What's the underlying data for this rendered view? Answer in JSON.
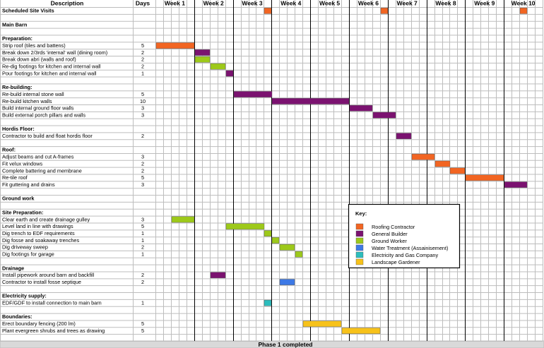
{
  "header": {
    "description": "Description",
    "days": "Days",
    "weeks": [
      "Week 1",
      "Week 2",
      "Week 3",
      "Week 4",
      "Week 5",
      "Week 6",
      "Week 7",
      "Week 8",
      "Week 9",
      "Week 10"
    ]
  },
  "footer": {
    "label": "Phase 1 completed"
  },
  "colors": {
    "roofing": "#f26522",
    "builder": "#7b1270",
    "ground": "#9dc91a",
    "water": "#3d79e6",
    "electric": "#2cbdbd",
    "landscape": "#f7c21a",
    "grid": "#bdbdbd",
    "week_line": "#000000",
    "footer_bg": "#d9d9d9"
  },
  "legend": {
    "title": "Key:",
    "entries": [
      {
        "label": "Roofing Contractor",
        "color": "roofing"
      },
      {
        "label": "General Builder",
        "color": "builder"
      },
      {
        "label": "Ground Worker",
        "color": "ground"
      },
      {
        "label": "Water Treatment (Assainisement)",
        "color": "water"
      },
      {
        "label": "Electricity and Gas Company",
        "color": "electric"
      },
      {
        "label": "Landscape Gardener",
        "color": "landscape"
      }
    ]
  },
  "chart_data": {
    "type": "gantt",
    "unit": "day",
    "days_per_week": 5,
    "total_days": 50,
    "rows": [
      {
        "label": "Scheduled Site Visits",
        "kind": "heading",
        "bars": [
          {
            "start": 14,
            "duration": 1,
            "color": "roofing"
          },
          {
            "start": 29,
            "duration": 1,
            "color": "roofing"
          },
          {
            "start": 47,
            "duration": 1,
            "color": "roofing"
          }
        ]
      },
      {
        "label": "",
        "kind": "blank"
      },
      {
        "label": "Main Barn",
        "kind": "heading"
      },
      {
        "label": "",
        "kind": "blank"
      },
      {
        "label": "Preparation:",
        "kind": "section"
      },
      {
        "label": "Strip roof (tiles and battens)",
        "days": "5",
        "bars": [
          {
            "start": 0,
            "duration": 5,
            "color": "roofing"
          }
        ]
      },
      {
        "label": "Break down 2/3rds 'internal' wall (dining room)",
        "days": "2",
        "bars": [
          {
            "start": 5,
            "duration": 2,
            "color": "builder"
          }
        ]
      },
      {
        "label": "Break down abri (walls and roof)",
        "days": "2",
        "bars": [
          {
            "start": 5,
            "duration": 2,
            "color": "ground"
          }
        ]
      },
      {
        "label": "Re-dig footings for kitchen and internal wall",
        "days": "2",
        "bars": [
          {
            "start": 7,
            "duration": 2,
            "color": "ground"
          }
        ]
      },
      {
        "label": "Pour footings for kitchen and internal wall",
        "days": "1",
        "bars": [
          {
            "start": 9,
            "duration": 1,
            "color": "builder"
          }
        ]
      },
      {
        "label": "",
        "kind": "blank"
      },
      {
        "label": "Re-building:",
        "kind": "section"
      },
      {
        "label": "Re-build internal stone wall",
        "days": "5",
        "bars": [
          {
            "start": 10,
            "duration": 5,
            "color": "builder"
          }
        ]
      },
      {
        "label": "Re-build kitchen walls",
        "days": "10",
        "bars": [
          {
            "start": 15,
            "duration": 10,
            "color": "builder"
          }
        ]
      },
      {
        "label": "Build internal ground floor walls",
        "days": "3",
        "bars": [
          {
            "start": 25,
            "duration": 3,
            "color": "builder"
          }
        ]
      },
      {
        "label": "Build external porch pillars and walls",
        "days": "3",
        "bars": [
          {
            "start": 28,
            "duration": 3,
            "color": "builder"
          }
        ]
      },
      {
        "label": "",
        "kind": "blank"
      },
      {
        "label": "Hordis Floor:",
        "kind": "section"
      },
      {
        "label": "Contractor to build and float hordis floor",
        "days": "2",
        "bars": [
          {
            "start": 31,
            "duration": 2,
            "color": "builder"
          }
        ]
      },
      {
        "label": "",
        "kind": "blank"
      },
      {
        "label": "Roof:",
        "kind": "section"
      },
      {
        "label": "Adjust beams and cut A-frames",
        "days": "3",
        "bars": [
          {
            "start": 33,
            "duration": 3,
            "color": "roofing"
          }
        ]
      },
      {
        "label": "Fit velux windows",
        "days": "2",
        "bars": [
          {
            "start": 36,
            "duration": 2,
            "color": "roofing"
          }
        ]
      },
      {
        "label": "Complete battering and membrane",
        "days": "2",
        "bars": [
          {
            "start": 38,
            "duration": 2,
            "color": "roofing"
          }
        ]
      },
      {
        "label": "Re-tile roof",
        "days": "5",
        "bars": [
          {
            "start": 40,
            "duration": 5,
            "color": "roofing"
          }
        ]
      },
      {
        "label": "Fit guttering and drains",
        "days": "3",
        "bars": [
          {
            "start": 45,
            "duration": 3,
            "color": "builder"
          }
        ]
      },
      {
        "label": "",
        "kind": "blank"
      },
      {
        "label": "Ground work",
        "kind": "heading"
      },
      {
        "label": "",
        "kind": "blank"
      },
      {
        "label": "Site Preparation:",
        "kind": "section"
      },
      {
        "label": "Clear earth and create drainage gulley",
        "days": "3",
        "bars": [
          {
            "start": 2,
            "duration": 3,
            "color": "ground"
          }
        ]
      },
      {
        "label": "Level land in line with drawings",
        "days": "5",
        "bars": [
          {
            "start": 9,
            "duration": 5,
            "color": "ground"
          }
        ]
      },
      {
        "label": "Dig trench to EDF requirements",
        "days": "1",
        "bars": [
          {
            "start": 14,
            "duration": 1,
            "color": "ground"
          }
        ]
      },
      {
        "label": "Dig fosse and soakaway trenches",
        "days": "1",
        "bars": [
          {
            "start": 15,
            "duration": 1,
            "color": "ground"
          }
        ]
      },
      {
        "label": "Dig driveway sweep",
        "days": "2",
        "bars": [
          {
            "start": 16,
            "duration": 2,
            "color": "ground"
          }
        ]
      },
      {
        "label": "Dig footings for garage",
        "days": "1",
        "bars": [
          {
            "start": 18,
            "duration": 1,
            "color": "ground"
          }
        ]
      },
      {
        "label": "",
        "kind": "blank"
      },
      {
        "label": "Drainage",
        "kind": "section"
      },
      {
        "label": "Install pipework around barn and backfill",
        "days": "2",
        "bars": [
          {
            "start": 7,
            "duration": 2,
            "color": "builder"
          }
        ]
      },
      {
        "label": "Contractor to install fosse septique",
        "days": "2",
        "bars": [
          {
            "start": 16,
            "duration": 2,
            "color": "water"
          }
        ]
      },
      {
        "label": "",
        "kind": "blank"
      },
      {
        "label": "Electricity supply:",
        "kind": "section"
      },
      {
        "label": "EDF/GDF to install connection to main barn",
        "days": "1",
        "bars": [
          {
            "start": 14,
            "duration": 1,
            "color": "electric"
          }
        ]
      },
      {
        "label": "",
        "kind": "blank"
      },
      {
        "label": "Boundaries:",
        "kind": "section"
      },
      {
        "label": "Erect boundary fencing (200 lm)",
        "days": "5",
        "bars": [
          {
            "start": 19,
            "duration": 5,
            "color": "landscape"
          }
        ]
      },
      {
        "label": "Plant evergreen shrubs and trees as drawing",
        "days": "5",
        "bars": [
          {
            "start": 24,
            "duration": 5,
            "color": "landscape"
          }
        ]
      },
      {
        "label": "",
        "kind": "blank"
      }
    ]
  }
}
